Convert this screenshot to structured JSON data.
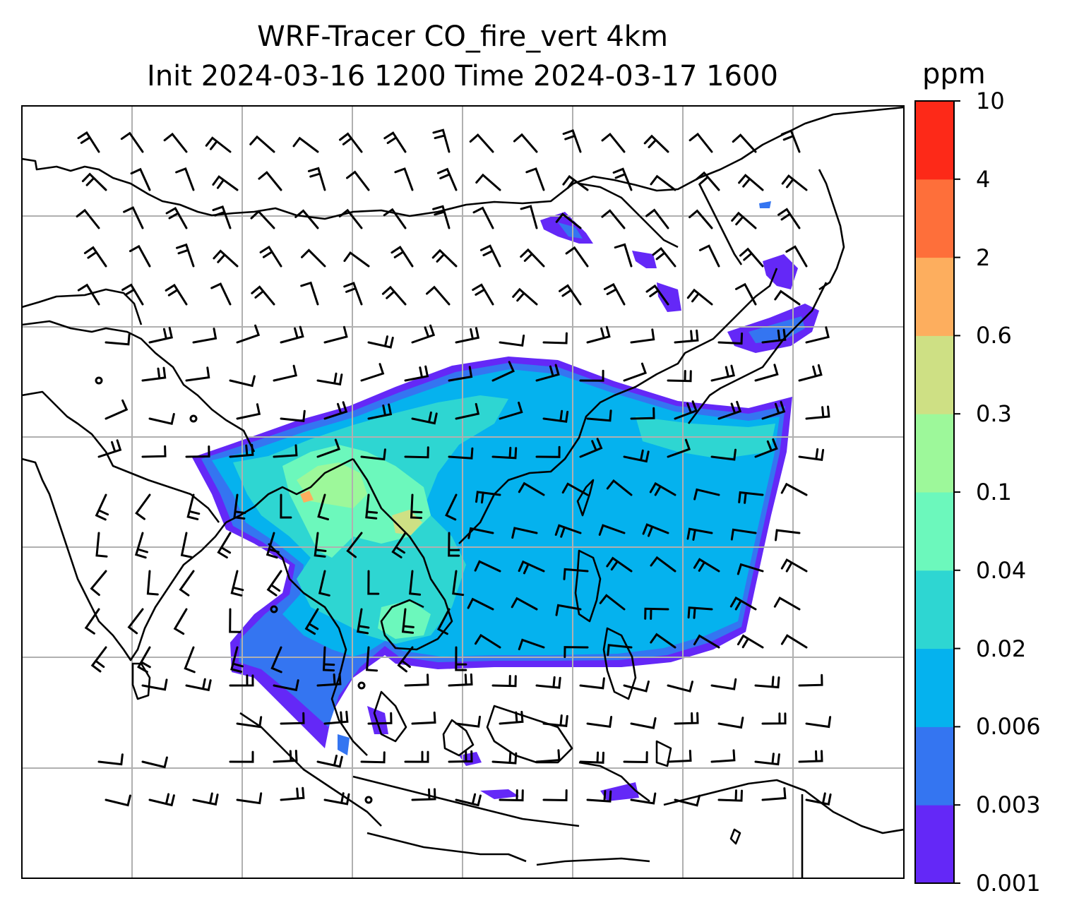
{
  "title": {
    "line1": "WRF-Tracer CO_fire_vert 4km",
    "line2": "Init 2024-03-16 1200 Time 2024-03-17 1600"
  },
  "colorbar": {
    "unit": "ppm",
    "levels": [
      "0.001",
      "0.003",
      "0.006",
      "0.02",
      "0.04",
      "0.1",
      "0.3",
      "0.6",
      "2",
      "4",
      "10"
    ],
    "colors": [
      "#6428f7",
      "#3475f1",
      "#05b2ee",
      "#2ed6d2",
      "#6cf8bc",
      "#9df89a",
      "#cee084",
      "#fdae5e",
      "#fe6f3a",
      "#fd2918"
    ]
  },
  "map": {
    "variable": "CO_fire_vert",
    "grid": "on",
    "wind_barbs": "on",
    "coastline_color": "#000000",
    "gridline_color": "#b0b0b0"
  }
}
